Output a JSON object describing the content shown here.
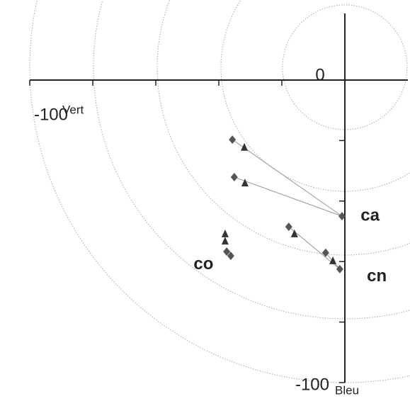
{
  "chart_data": {
    "type": "scatter",
    "x_label": "Vert",
    "y_label": "Bleu",
    "xlim": [
      -100,
      20
    ],
    "ylim": [
      -100,
      22
    ],
    "xticks": [
      -100,
      -80,
      -60,
      -40,
      -20,
      0
    ],
    "yticks": [
      -100,
      -80,
      -60,
      -40,
      -20,
      0
    ],
    "xtick_labels": [
      -100,
      0
    ],
    "ytick_labels": [
      -100
    ],
    "series": [
      {
        "name": "diamond",
        "color": "#555555",
        "marker": "diamond",
        "x": [
          -35.7,
          -35.1,
          -0.9,
          -17.8,
          -6.1,
          -1.6,
          -37.5,
          -36.2
        ],
        "values": [
          -19.7,
          -32.1,
          -45.0,
          -48.5,
          -57.1,
          -62.5,
          -56.7,
          -58.1
        ]
      },
      {
        "name": "triangle",
        "color": "#333333",
        "marker": "triangle",
        "x": [
          -31.9,
          -31.7,
          -16.0,
          -3.8,
          -38.0,
          -38.0
        ],
        "values": [
          -22.2,
          -34.0,
          -50.8,
          -59.7,
          -53.2,
          -50.8
        ]
      }
    ],
    "annotations": [
      {
        "text": "ca",
        "x": 5,
        "y": -45
      },
      {
        "text": "cn",
        "x": 7,
        "y": -65
      },
      {
        "text": "co",
        "x": -48,
        "y": -61
      }
    ]
  }
}
